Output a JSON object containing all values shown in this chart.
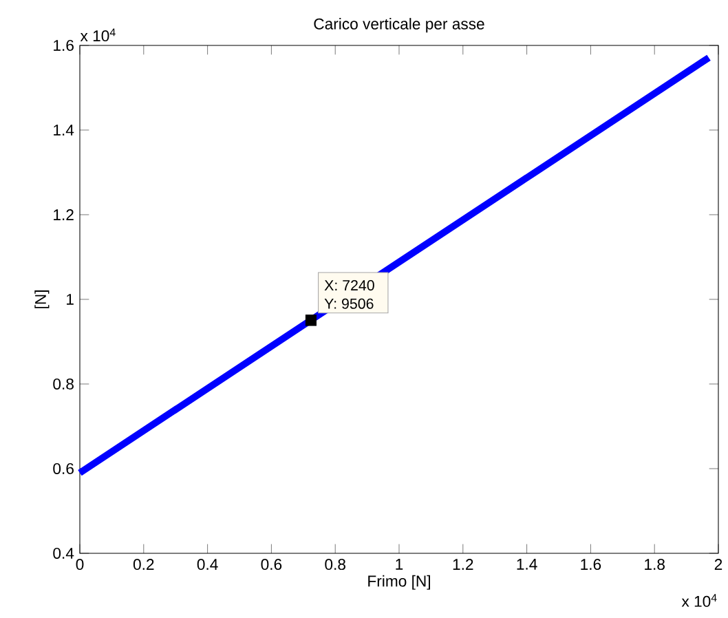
{
  "chart_data": {
    "type": "line",
    "title": "Carico verticale per asse",
    "xlabel": "Frimo [N]",
    "ylabel": "[N]",
    "series": [
      {
        "color": "#0000ff",
        "x": [
          0,
          0.724,
          1.97
        ],
        "values": [
          0.59,
          0.951,
          1.571
        ]
      }
    ],
    "xlim": [
      0,
      2
    ],
    "ylim": [
      0.4,
      1.6
    ],
    "xticks": [
      0,
      0.2,
      0.4,
      0.6,
      0.8,
      1,
      1.2,
      1.4,
      1.6,
      1.8,
      2
    ],
    "yticks": [
      0.4,
      0.6,
      0.8,
      1,
      1.2,
      1.4,
      1.6
    ],
    "annotations": [
      "x 10$^{4}$",
      "x 10$^{4}$",
      {
        "text": "X: 7240",
        "x": 0.724,
        "y": 0.9506
      },
      {
        "text": "Y: 9506",
        "x": 0.724,
        "y": 0.9506
      }
    ]
  }
}
